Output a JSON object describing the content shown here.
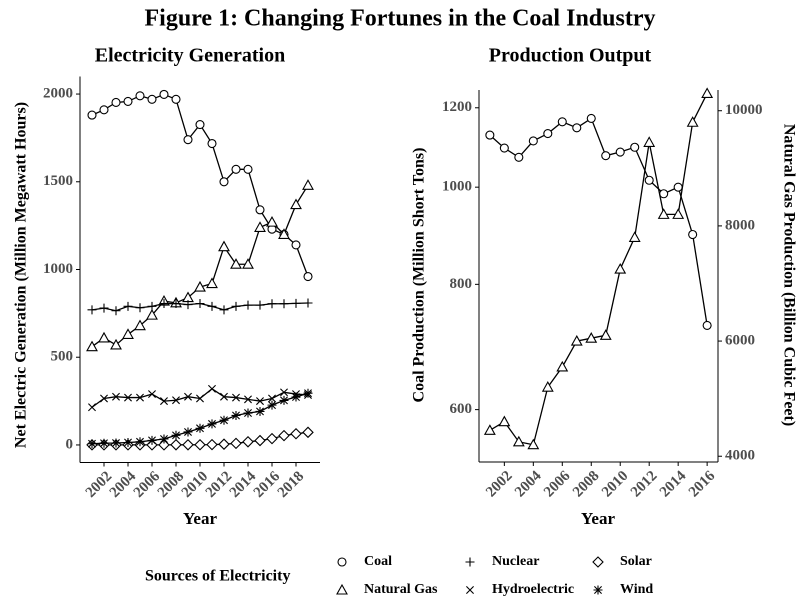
{
  "title": "Figure 1: Changing Fortunes in the Coal Industry",
  "chart_data": [
    {
      "type": "line",
      "title": "Electricity Generation",
      "xlabel": "Year",
      "ylabel": "Net Electric Generation (Million Megawatt Hours)",
      "x": [
        2001,
        2002,
        2003,
        2004,
        2005,
        2006,
        2007,
        2008,
        2009,
        2010,
        2011,
        2012,
        2013,
        2014,
        2015,
        2016,
        2017,
        2018,
        2019
      ],
      "xlim": [
        2000,
        2020
      ],
      "xticks": [
        2002,
        2004,
        2006,
        2008,
        2010,
        2012,
        2014,
        2016,
        2018
      ],
      "ylim": [
        -100,
        2100
      ],
      "yticks": [
        0,
        500,
        1000,
        1500,
        2000
      ],
      "legend_title": "Sources of Electricity",
      "legend": "bottom",
      "series": [
        {
          "name": "Coal",
          "color": "#000000",
          "marker": "circle",
          "values": [
            1880,
            1910,
            1952,
            1958,
            1990,
            1970,
            1998,
            1970,
            1740,
            1826,
            1718,
            1500,
            1571,
            1571,
            1340,
            1230,
            1200,
            1140,
            960
          ]
        },
        {
          "name": "Natural Gas",
          "color": "#000000",
          "marker": "triangle",
          "values": [
            560,
            610,
            570,
            630,
            680,
            740,
            820,
            810,
            840,
            900,
            920,
            1130,
            1030,
            1030,
            1240,
            1270,
            1200,
            1370,
            1480
          ]
        },
        {
          "name": "Nuclear",
          "color": "#000000",
          "marker": "plus",
          "values": [
            770,
            780,
            765,
            790,
            782,
            790,
            806,
            806,
            800,
            806,
            790,
            770,
            790,
            797,
            797,
            805,
            805,
            807,
            809
          ]
        },
        {
          "name": "Hydroelectric",
          "color": "#000000",
          "marker": "cross",
          "values": [
            215,
            265,
            275,
            270,
            270,
            290,
            250,
            255,
            275,
            265,
            320,
            275,
            270,
            260,
            250,
            265,
            300,
            290,
            285
          ]
        },
        {
          "name": "Solar",
          "color": "#000000",
          "marker": "diamond",
          "values": [
            0.5,
            0.6,
            0.5,
            0.6,
            0.6,
            0.5,
            0.6,
            0.9,
            0.9,
            1.2,
            1.8,
            4.3,
            9,
            18,
            25,
            36,
            53,
            64,
            72
          ]
        },
        {
          "name": "Wind",
          "color": "#000000",
          "marker": "asterisk",
          "values": [
            7,
            10,
            11,
            14,
            18,
            26,
            34,
            55,
            74,
            95,
            120,
            141,
            168,
            182,
            191,
            227,
            254,
            273,
            295
          ]
        }
      ]
    },
    {
      "type": "line",
      "title": "Production Output",
      "xlabel": "Year",
      "ylabel": "Coal Production (Million Short Tons)",
      "y2label": "Natural Gas Production (Billion Cubic Feet)",
      "x": [
        2001,
        2002,
        2003,
        2004,
        2005,
        2006,
        2007,
        2008,
        2009,
        2010,
        2011,
        2012,
        2013,
        2014,
        2015,
        2016
      ],
      "xlim": [
        2000.25,
        2016.75
      ],
      "xticks": [
        2002,
        2004,
        2006,
        2008,
        2010,
        2012,
        2014,
        2016
      ],
      "ylim": [
        532,
        1250
      ],
      "ylog": true,
      "yticks": [
        600,
        800,
        1000,
        1200
      ],
      "y2lim": [
        3900,
        10360
      ],
      "y2ticks": [
        4000,
        6000,
        8000,
        10000
      ],
      "series": [
        {
          "color": "#000000",
          "marker": "circle",
          "values": [
            1127,
            1094,
            1071,
            1112,
            1131,
            1162,
            1146,
            1171,
            1075,
            1084,
            1096,
            1016,
            985,
            1000,
            897,
            728
          ]
        },
        {
          "color": "#000000",
          "marker": "triangle",
          "axis": "y2",
          "values": [
            4450,
            4600,
            4250,
            4200,
            5200,
            5550,
            6000,
            6050,
            6100,
            7250,
            7800,
            9450,
            8200,
            8200,
            9800,
            10300
          ]
        }
      ]
    }
  ]
}
